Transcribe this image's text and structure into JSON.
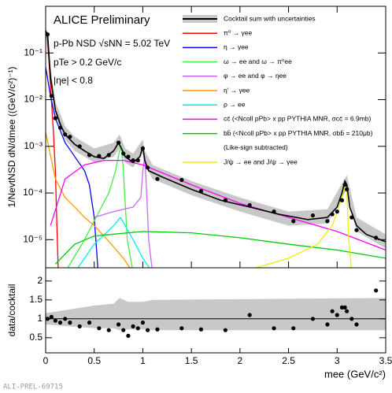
{
  "chart_data": [
    {
      "type": "line",
      "texts": [
        "ALICE Preliminary",
        "p-Pb NSD √sNN = 5.02 TeV",
        "pTe > 0.2 GeV/c",
        "|ηe| < 0.8"
      ],
      "y_label": "1/NevtNSD dN/dmee ((GeV/c²)⁻¹)",
      "log_y": true,
      "ylim": [
        2.5e-06,
        1
      ],
      "yticks": [
        {
          "value": 1e-05,
          "label": "10⁻⁵"
        },
        {
          "value": 0.0001,
          "label": "10⁻⁴"
        },
        {
          "value": 0.001,
          "label": "10⁻³"
        },
        {
          "value": 0.01,
          "label": "10⁻²"
        },
        {
          "value": 0.1,
          "label": "10⁻¹"
        }
      ],
      "legend_note": "(Like-sign subtracted)",
      "cocktail": {
        "name": "Cocktail sum with uncertainties",
        "color": "#000000",
        "band_color": "#c8c8c8",
        "x": [
          0.0,
          0.02,
          0.05,
          0.1,
          0.15,
          0.2,
          0.3,
          0.4,
          0.5,
          0.6,
          0.7,
          0.75,
          0.78,
          0.82,
          0.9,
          0.97,
          1.0,
          1.02,
          1.06,
          1.2,
          1.5,
          1.8,
          2.1,
          2.4,
          2.7,
          2.9,
          3.0,
          3.05,
          3.08,
          3.1,
          3.13,
          3.2,
          3.3,
          3.5
        ],
        "values": [
          0.3,
          0.25,
          0.03,
          0.006,
          0.003,
          0.0018,
          0.0011,
          0.0008,
          0.0006,
          0.00055,
          0.0008,
          0.0012,
          0.0009,
          0.0006,
          0.00045,
          0.0006,
          0.001,
          0.0005,
          0.0003,
          0.00022,
          0.00012,
          7e-05,
          5e-05,
          3.5e-05,
          2.7e-05,
          3e-05,
          5e-05,
          0.0001,
          0.00018,
          0.00015,
          5e-05,
          2e-05,
          1.3e-05,
          9e-06
        ],
        "band_x": [
          0,
          0.05,
          0.1,
          0.2,
          0.3,
          0.5,
          0.7,
          0.76,
          0.82,
          0.9,
          1.0,
          1.02,
          1.1,
          1.5,
          2.0,
          2.5,
          2.9,
          3.05,
          3.1,
          3.2,
          3.5
        ],
        "band_upper": [
          0.4,
          0.05,
          0.009,
          0.0027,
          0.0016,
          0.0009,
          0.0012,
          0.0018,
          0.0009,
          0.0007,
          0.0014,
          0.0008,
          0.0004,
          0.00018,
          8e-05,
          4e-05,
          4.5e-05,
          0.00016,
          0.00024,
          3e-05,
          1.3e-05
        ],
        "band_lower": [
          0.22,
          0.025,
          0.0045,
          0.0014,
          0.0008,
          0.00045,
          0.0006,
          0.0009,
          0.00045,
          0.00035,
          0.0007,
          0.0004,
          0.0002,
          9e-05,
          4e-05,
          2e-05,
          2.2e-05,
          8e-05,
          0.00012,
          1.5e-05,
          6.5e-06
        ]
      },
      "series": [
        {
          "name": "π⁰ → γee",
          "color": "#ff0000",
          "x": [
            0,
            0.02,
            0.05,
            0.08,
            0.1,
            0.12,
            0.13
          ],
          "values": [
            0.3,
            0.2,
            0.02,
            0.002,
            0.0003,
            1e-05,
            2e-06
          ]
        },
        {
          "name": "η → γee",
          "color": "#0000ff",
          "x": [
            0,
            0.05,
            0.1,
            0.2,
            0.3,
            0.4,
            0.45,
            0.5,
            0.52,
            0.54
          ],
          "values": [
            0.05,
            0.012,
            0.004,
            0.0012,
            0.0006,
            0.0003,
            0.00015,
            3e-05,
            8e-06,
            2e-06
          ]
        },
        {
          "name": "ω → ee and ω → π⁰ee",
          "color": "#44ee44",
          "x": [
            0.2,
            0.4,
            0.55,
            0.65,
            0.72,
            0.76,
            0.78,
            0.8,
            0.84,
            0.9
          ],
          "values": [
            2e-06,
            1e-05,
            4e-05,
            0.0001,
            0.0003,
            0.0008,
            0.001,
            0.0003,
            1e-05,
            2e-06
          ]
        },
        {
          "name": "φ → ee and φ → ηee",
          "color": "#cc66ff",
          "x": [
            0.5,
            0.7,
            0.9,
            0.98,
            1.0,
            1.02,
            1.04,
            1.06,
            1.1
          ],
          "values": [
            3e-05,
            4e-05,
            5e-05,
            8e-05,
            0.0003,
            0.0006,
            0.0001,
            1e-05,
            2e-06
          ]
        },
        {
          "name": "η′ → γee",
          "color": "#ff9900",
          "x": [
            0,
            0.1,
            0.2,
            0.3,
            0.4,
            0.5,
            0.6,
            0.7,
            0.8,
            0.9,
            0.95
          ],
          "values": [
            0.002,
            0.0002,
            8e-05,
            5e-05,
            3e-05,
            2e-05,
            1.2e-05,
            7e-06,
            4e-06,
            2e-06,
            1e-06
          ]
        },
        {
          "name": "ρ → ee",
          "color": "#00eeee",
          "x": [
            0.3,
            0.5,
            0.7,
            0.77,
            0.9,
            1.0,
            1.1
          ],
          "values": [
            2e-06,
            8e-06,
            2e-05,
            3e-05,
            1e-05,
            4e-06,
            2e-06
          ]
        },
        {
          "name": "cc̄ (<Ncoll pPb> x pp PYTHIA MNR, σcc̄ = 6.9mb)",
          "color": "#ff00ff",
          "x": [
            0.05,
            0.2,
            0.4,
            0.6,
            0.8,
            1.0,
            1.5,
            2.0,
            2.5,
            3.0,
            3.5
          ],
          "values": [
            2e-05,
            0.0002,
            0.0004,
            0.0005,
            0.0005,
            0.0004,
            0.00015,
            6e-05,
            3e-05,
            1.5e-05,
            6e-06
          ]
        },
        {
          "name": "bb̄ (<Ncoll pPb> x pp PYTHIA MNR, σbb̄ = 210μb)",
          "color": "#00cc00",
          "x": [
            0.1,
            0.3,
            0.5,
            1,
            1.5,
            2,
            2.5,
            3,
            3.5
          ],
          "values": [
            3e-06,
            8e-06,
            1.2e-05,
            1.5e-05,
            1.4e-05,
            1.1e-05,
            8e-06,
            6e-06,
            4e-06
          ]
        },
        {
          "name": "J/ψ → ee and J/ψ → γee",
          "color": "#eeee00",
          "x": [
            2.0,
            2.5,
            2.8,
            2.95,
            3.05,
            3.08,
            3.1,
            3.12,
            3.15
          ],
          "values": [
            2e-06,
            4e-06,
            8e-06,
            2e-05,
            8e-05,
            0.00015,
            0.0001,
            1e-05,
            2e-06
          ]
        }
      ],
      "points": {
        "color": "#000000",
        "x": [
          0.02,
          0.06,
          0.1,
          0.15,
          0.2,
          0.25,
          0.35,
          0.45,
          0.55,
          0.65,
          0.75,
          0.8,
          0.85,
          0.9,
          0.95,
          1.0,
          1.05,
          1.15,
          1.4,
          1.6,
          1.85,
          2.1,
          2.35,
          2.55,
          2.75,
          2.9,
          2.95,
          3.0,
          3.05,
          3.08,
          3.1,
          3.15,
          3.2,
          3.4
        ],
        "values": [
          0.25,
          0.012,
          0.004,
          0.0025,
          0.0018,
          0.0016,
          0.001,
          0.00065,
          0.00062,
          0.00065,
          0.0012,
          0.0007,
          0.0006,
          0.0005,
          0.0005,
          0.0009,
          0.00035,
          0.0002,
          0.00019,
          0.00011,
          7e-05,
          5.5e-05,
          4e-05,
          2.5e-05,
          3.3e-05,
          2.5e-05,
          3.5e-05,
          4e-05,
          7e-05,
          0.00015,
          0.00012,
          3e-05,
          1.6e-05,
          1.1e-05
        ]
      }
    },
    {
      "type": "scatter",
      "y_label": "data/cocktail",
      "x_label": "mee (GeV/c²)",
      "xlim": [
        0,
        3.5
      ],
      "xticks": [
        0,
        0.5,
        1,
        1.5,
        2,
        2.5,
        3,
        3.5
      ],
      "ylim": [
        0.1,
        2.35
      ],
      "yticks": [
        0.5,
        1,
        1.5,
        2
      ],
      "band": {
        "color": "#c8c8c8",
        "x": [
          0,
          0.5,
          0.7,
          0.76,
          0.85,
          1.0,
          1.1,
          3.5
        ],
        "upper": [
          1.15,
          1.35,
          1.4,
          1.55,
          1.45,
          1.45,
          1.5,
          1.55
        ],
        "lower": [
          0.85,
          0.75,
          0.75,
          0.7,
          0.72,
          0.72,
          0.7,
          0.7
        ]
      },
      "points": {
        "color": "#000000",
        "x": [
          0.02,
          0.06,
          0.1,
          0.15,
          0.2,
          0.25,
          0.35,
          0.45,
          0.55,
          0.65,
          0.75,
          0.8,
          0.85,
          0.9,
          0.95,
          1.0,
          1.05,
          1.15,
          1.4,
          1.6,
          1.85,
          2.1,
          2.35,
          2.55,
          2.75,
          2.9,
          2.95,
          3.0,
          3.05,
          3.08,
          3.1,
          3.15,
          3.2,
          3.4
        ],
        "values": [
          1.0,
          1.05,
          0.95,
          0.9,
          1.0,
          0.9,
          0.8,
          0.9,
          0.75,
          0.7,
          0.85,
          0.7,
          0.55,
          0.8,
          0.75,
          0.9,
          0.7,
          0.72,
          0.75,
          0.72,
          0.7,
          1.1,
          0.75,
          0.75,
          1.0,
          0.85,
          1.2,
          1.1,
          1.3,
          1.3,
          1.2,
          1.0,
          0.85,
          1.75
        ]
      }
    }
  ],
  "footer": "ALI-PREL-69715"
}
